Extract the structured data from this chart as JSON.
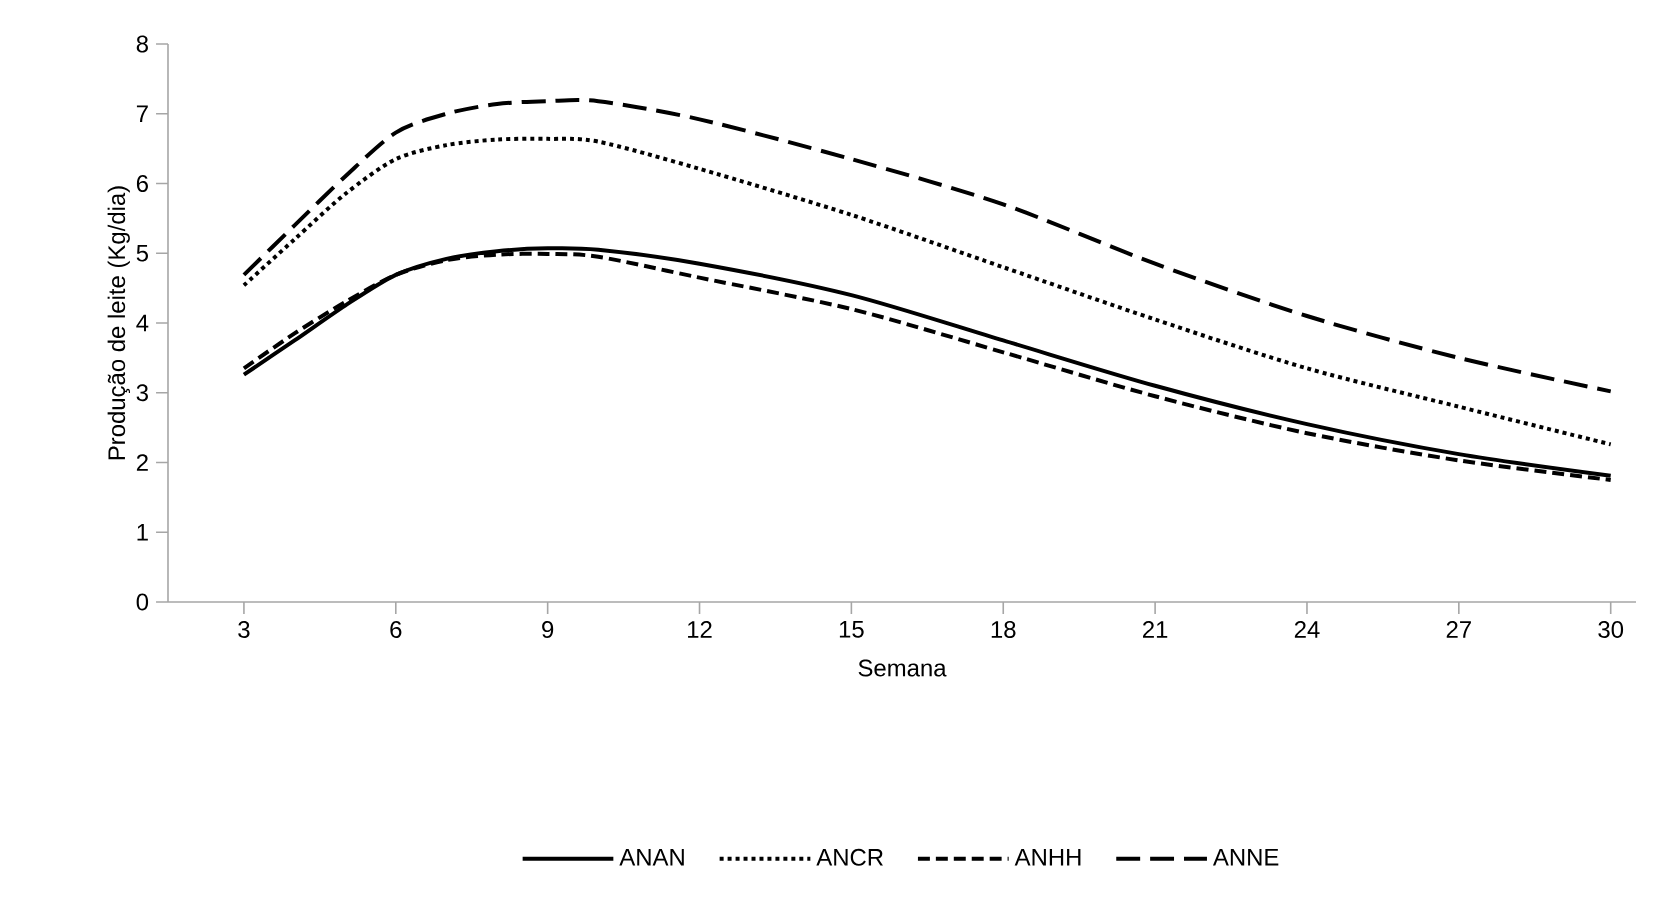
{
  "chart_data": {
    "type": "line",
    "xlabel": "Semana",
    "ylabel": "Produção de leite (Kg/dia)",
    "x": [
      3,
      4,
      5,
      6,
      7,
      8,
      9,
      10,
      12,
      15,
      18,
      21,
      24,
      27,
      30
    ],
    "series": [
      {
        "name": "ANAN",
        "color": "#000000",
        "line_style": "solid",
        "values": [
          3.26,
          3.75,
          4.25,
          4.69,
          4.92,
          5.03,
          5.07,
          5.05,
          4.85,
          4.4,
          3.75,
          3.1,
          2.55,
          2.12,
          1.81
        ]
      },
      {
        "name": "ANCR",
        "color": "#000000",
        "line_style": "dotted",
        "values": [
          4.54,
          5.2,
          5.85,
          6.35,
          6.55,
          6.63,
          6.64,
          6.6,
          6.21,
          5.55,
          4.8,
          4.05,
          3.35,
          2.8,
          2.26
        ]
      },
      {
        "name": "ANHH",
        "color": "#000000",
        "line_style": "dashed",
        "values": [
          3.35,
          3.85,
          4.3,
          4.69,
          4.9,
          4.98,
          4.99,
          4.95,
          4.65,
          4.2,
          3.58,
          2.95,
          2.42,
          2.03,
          1.75
        ]
      },
      {
        "name": "ANNE",
        "color": "#000000",
        "line_style": "long dashed",
        "values": [
          4.69,
          5.4,
          6.1,
          6.73,
          7.0,
          7.14,
          7.18,
          7.18,
          6.92,
          6.35,
          5.7,
          4.85,
          4.1,
          3.5,
          3.02
        ]
      }
    ],
    "xlim": [
      1.5,
      30.5
    ],
    "xticks": [
      3,
      6,
      9,
      12,
      15,
      18,
      21,
      24,
      27,
      30
    ],
    "ylim": [
      0,
      8
    ],
    "yticks": [
      0,
      1,
      2,
      3,
      4,
      5,
      6,
      7,
      8
    ],
    "grid": false,
    "legend": "bottom",
    "marker": "none"
  }
}
